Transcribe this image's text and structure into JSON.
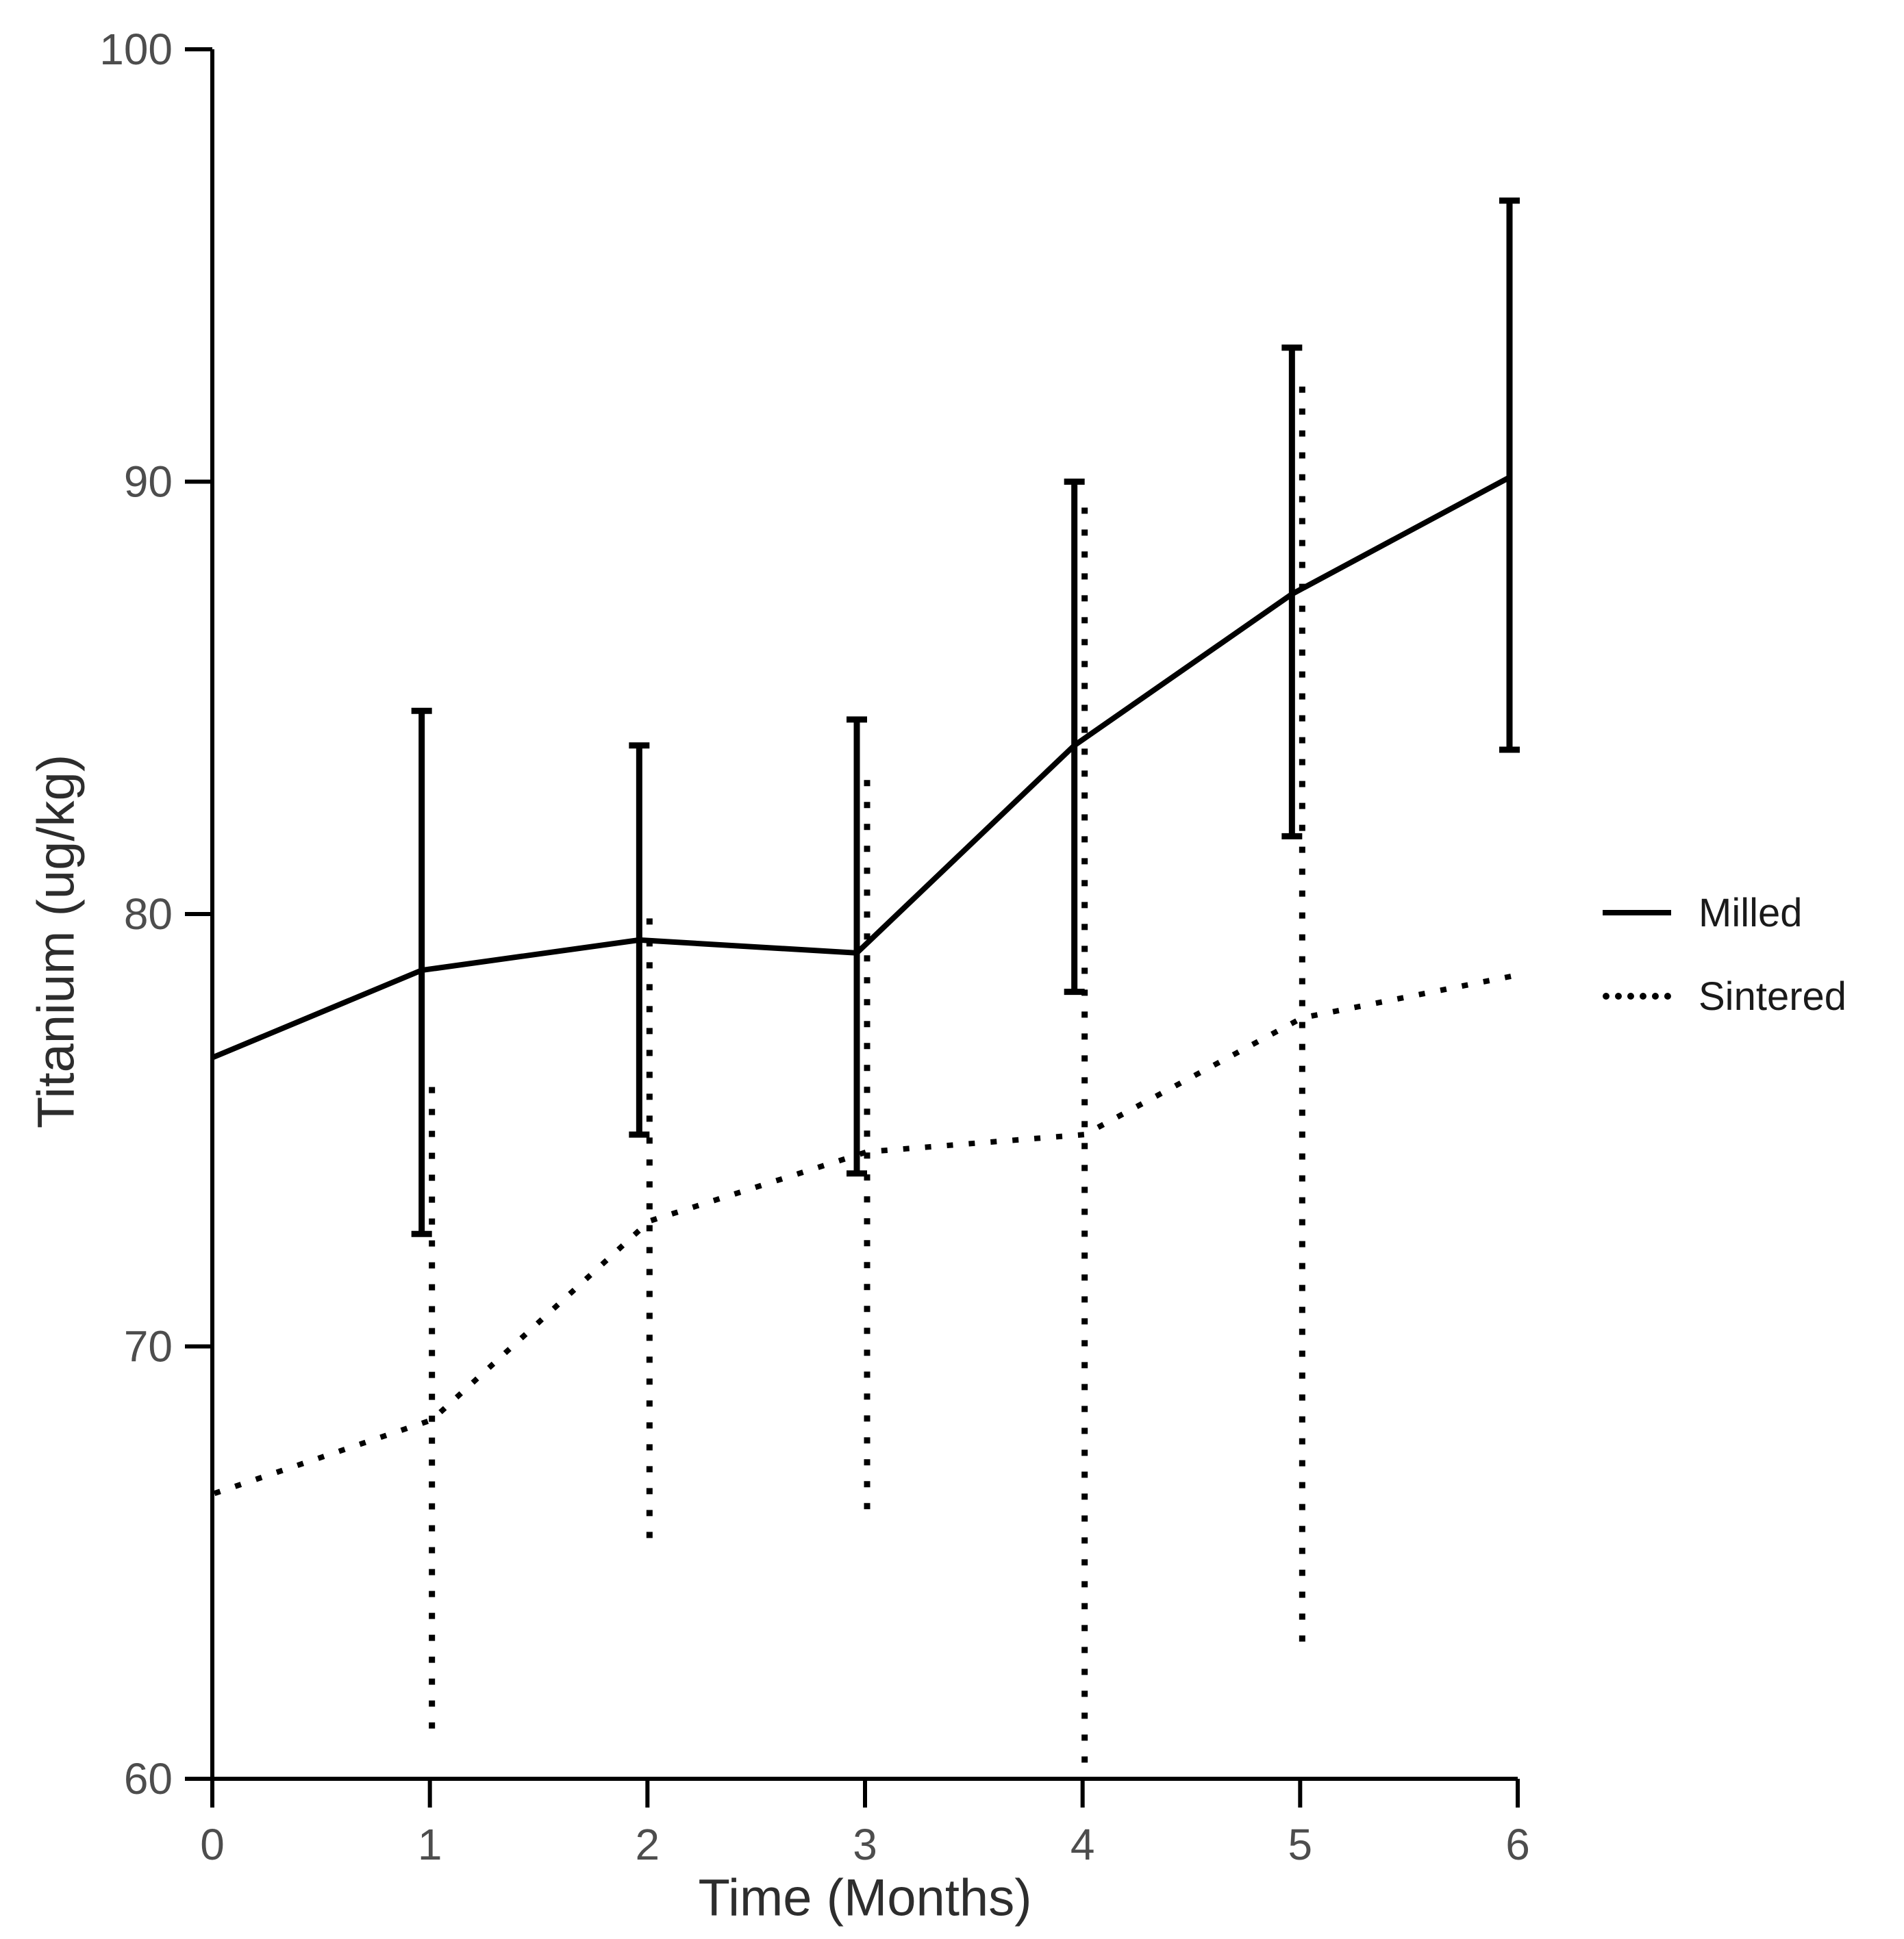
{
  "figure": {
    "background": "#ffffff",
    "line_color": "#000000",
    "tick_label_color": "#4d4d4d",
    "axis_title_color": "#2d2d2d"
  },
  "axes": {
    "x_title": "Time (Months)",
    "y_title": "Titanium (ug/kg)"
  },
  "legend": {
    "items": [
      {
        "label": "Milled",
        "swatch": "solid-line"
      },
      {
        "label": "Sintered",
        "swatch": "dotted-line"
      }
    ]
  },
  "chart_data": {
    "type": "line",
    "title": "",
    "xlabel": "Time (Months)",
    "ylabel": "Titanium (ug/kg)",
    "xlim": [
      0,
      6
    ],
    "ylim": [
      60,
      100
    ],
    "x_ticks": [
      0,
      1,
      2,
      3,
      4,
      5,
      6
    ],
    "y_ticks": [
      60,
      70,
      80,
      90,
      100
    ],
    "grid": false,
    "legend_position": "right",
    "series": [
      {
        "name": "Milled",
        "style": "solid",
        "color": "#000000",
        "x": [
          0,
          1,
          2,
          3,
          4,
          5,
          6
        ],
        "values": [
          76.6,
          78.7,
          79.4,
          79.1,
          83.9,
          87.4,
          90.1
        ],
        "error_bars": {
          "x": [
            1,
            2,
            3,
            4,
            5,
            6
          ],
          "lower": [
            72.6,
            74.9,
            74.0,
            78.2,
            81.8,
            83.8
          ],
          "upper": [
            84.7,
            83.9,
            84.5,
            90.0,
            93.1,
            96.5
          ],
          "caps": true
        }
      },
      {
        "name": "Sintered",
        "style": "dotted",
        "color": "#000000",
        "x": [
          0,
          1,
          2,
          3,
          4,
          5,
          6
        ],
        "values": [
          66.6,
          68.3,
          72.9,
          74.5,
          74.9,
          77.6,
          78.6
        ],
        "error_bars": {
          "x": [
            1,
            2,
            3,
            4,
            5
          ],
          "lower": [
            60.9,
            65.3,
            66.0,
            60.3,
            63.1
          ],
          "upper": [
            76.0,
            79.9,
            83.1,
            89.4,
            92.2
          ],
          "caps": false
        }
      }
    ]
  }
}
